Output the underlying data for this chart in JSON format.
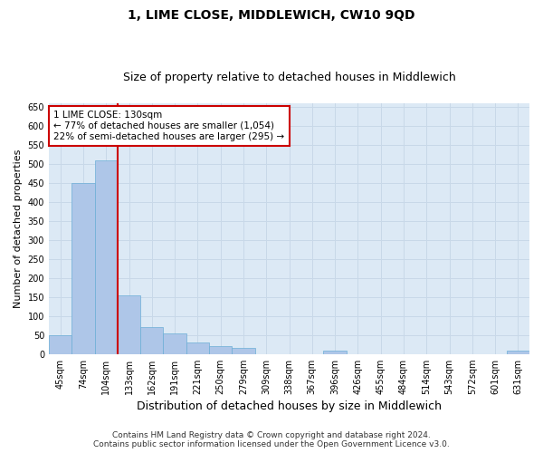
{
  "title": "1, LIME CLOSE, MIDDLEWICH, CW10 9QD",
  "subtitle": "Size of property relative to detached houses in Middlewich",
  "xlabel": "Distribution of detached houses by size in Middlewich",
  "ylabel": "Number of detached properties",
  "categories": [
    "45sqm",
    "74sqm",
    "104sqm",
    "133sqm",
    "162sqm",
    "191sqm",
    "221sqm",
    "250sqm",
    "279sqm",
    "309sqm",
    "338sqm",
    "367sqm",
    "396sqm",
    "426sqm",
    "455sqm",
    "484sqm",
    "514sqm",
    "543sqm",
    "572sqm",
    "601sqm",
    "631sqm"
  ],
  "values": [
    50,
    450,
    510,
    155,
    70,
    55,
    30,
    20,
    15,
    0,
    0,
    0,
    10,
    0,
    0,
    0,
    0,
    0,
    0,
    0,
    10
  ],
  "bar_color": "#aec6e8",
  "bar_edge_color": "#6baed6",
  "grid_color": "#c8d8e8",
  "background_color": "#dce9f5",
  "vline_index": 3,
  "vline_color": "#cc0000",
  "annotation_text": "1 LIME CLOSE: 130sqm\n← 77% of detached houses are smaller (1,054)\n22% of semi-detached houses are larger (295) →",
  "annotation_box_color": "#ffffff",
  "annotation_box_edge": "#cc0000",
  "ylim": [
    0,
    660
  ],
  "yticks": [
    0,
    50,
    100,
    150,
    200,
    250,
    300,
    350,
    400,
    450,
    500,
    550,
    600,
    650
  ],
  "footnote": "Contains HM Land Registry data © Crown copyright and database right 2024.\nContains public sector information licensed under the Open Government Licence v3.0.",
  "title_fontsize": 10,
  "subtitle_fontsize": 9,
  "xlabel_fontsize": 9,
  "ylabel_fontsize": 8,
  "tick_fontsize": 7,
  "annotation_fontsize": 7.5,
  "footnote_fontsize": 6.5
}
